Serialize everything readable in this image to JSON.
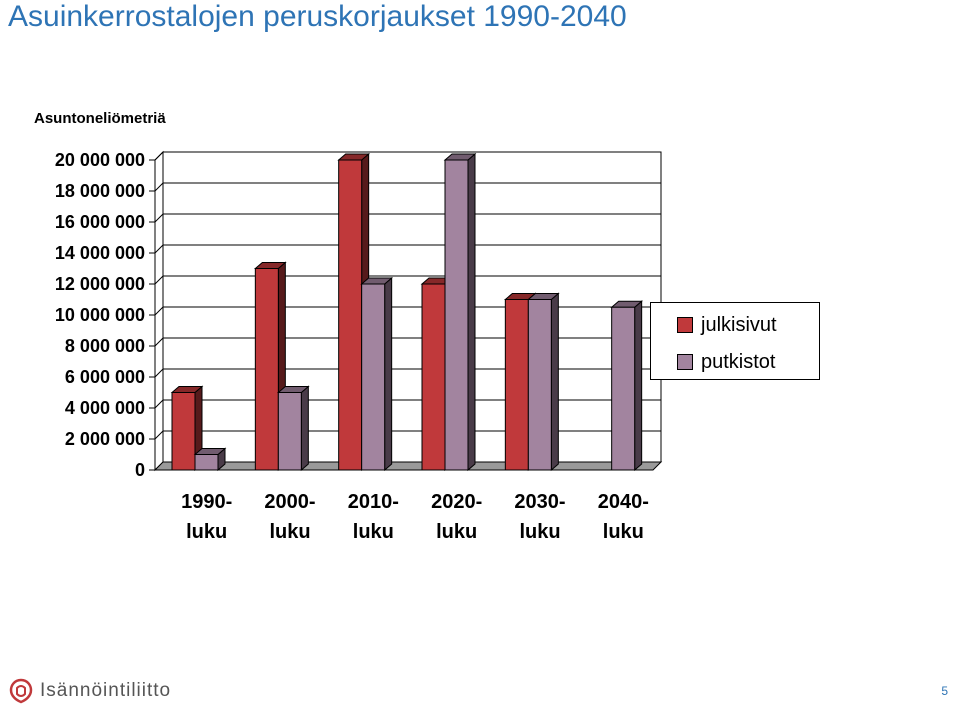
{
  "slide": {
    "title": "Asuinkerrostalojen peruskorjaukset 1990-2040",
    "page_number": "5",
    "logo_text": "Isännöintiliitto"
  },
  "chart_data": {
    "type": "bar",
    "title": "",
    "ylabel": "Asuntoneliömetriä",
    "xlabel": "",
    "ylim": [
      0,
      20000000
    ],
    "yticks": [
      "0",
      "2 000 000",
      "4 000 000",
      "6 000 000",
      "8 000 000",
      "10 000 000",
      "12 000 000",
      "14 000 000",
      "16 000 000",
      "18 000 000",
      "20 000 000"
    ],
    "categories": [
      [
        "1990-",
        "luku"
      ],
      [
        "2000-",
        "luku"
      ],
      [
        "2010-",
        "luku"
      ],
      [
        "2020-",
        "luku"
      ],
      [
        "2030-",
        "luku"
      ],
      [
        "2040-",
        "luku"
      ]
    ],
    "series": [
      {
        "name": "julkisivut",
        "color": "#c0393b",
        "values": [
          5000000,
          13000000,
          20000000,
          12000000,
          11000000,
          0
        ]
      },
      {
        "name": "putkistot",
        "color": "#a2849f",
        "values": [
          1000000,
          5000000,
          12000000,
          20000000,
          11000000,
          10500000
        ]
      }
    ],
    "grid": true,
    "legend": "right"
  },
  "colors": {
    "title": "#2e74b5",
    "logo_accent": "#c0393b"
  }
}
